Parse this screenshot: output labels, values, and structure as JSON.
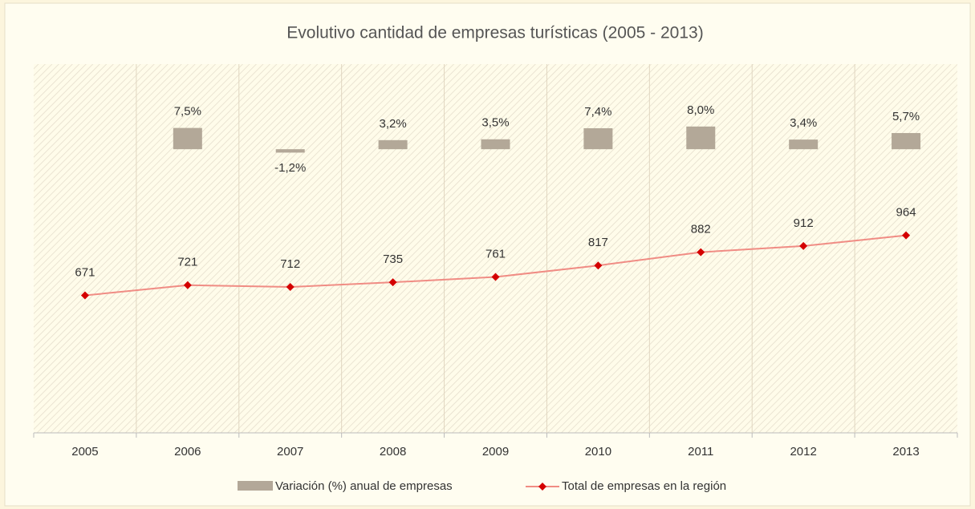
{
  "chart_data": {
    "type": "bar-line",
    "title": "Evolutivo cantidad de empresas turísticas (2005 - 2013)",
    "categories": [
      "2005",
      "2006",
      "2007",
      "2008",
      "2009",
      "2010",
      "2011",
      "2012",
      "2013"
    ],
    "series": [
      {
        "name": "Variación (%) anual de empresas",
        "type": "bar",
        "axis": "y2",
        "color": "#b3a898",
        "values": [
          null,
          7.5,
          -1.2,
          3.2,
          3.5,
          7.4,
          8.0,
          3.4,
          5.7
        ],
        "value_labels": [
          null,
          "7,5%",
          "-1,2%",
          "3,2%",
          "3,5%",
          "7,4%",
          "8,0%",
          "3,4%",
          "5,7%"
        ]
      },
      {
        "name": "Total de empresas en la región",
        "type": "line",
        "color": "#f08c84",
        "marker_color": "#d40000",
        "values": [
          671,
          721,
          712,
          735,
          761,
          817,
          882,
          912,
          964
        ]
      }
    ],
    "ylim": [
      0,
      1800
    ],
    "y2lim": [
      -100,
      30
    ],
    "legend": "bottom"
  }
}
